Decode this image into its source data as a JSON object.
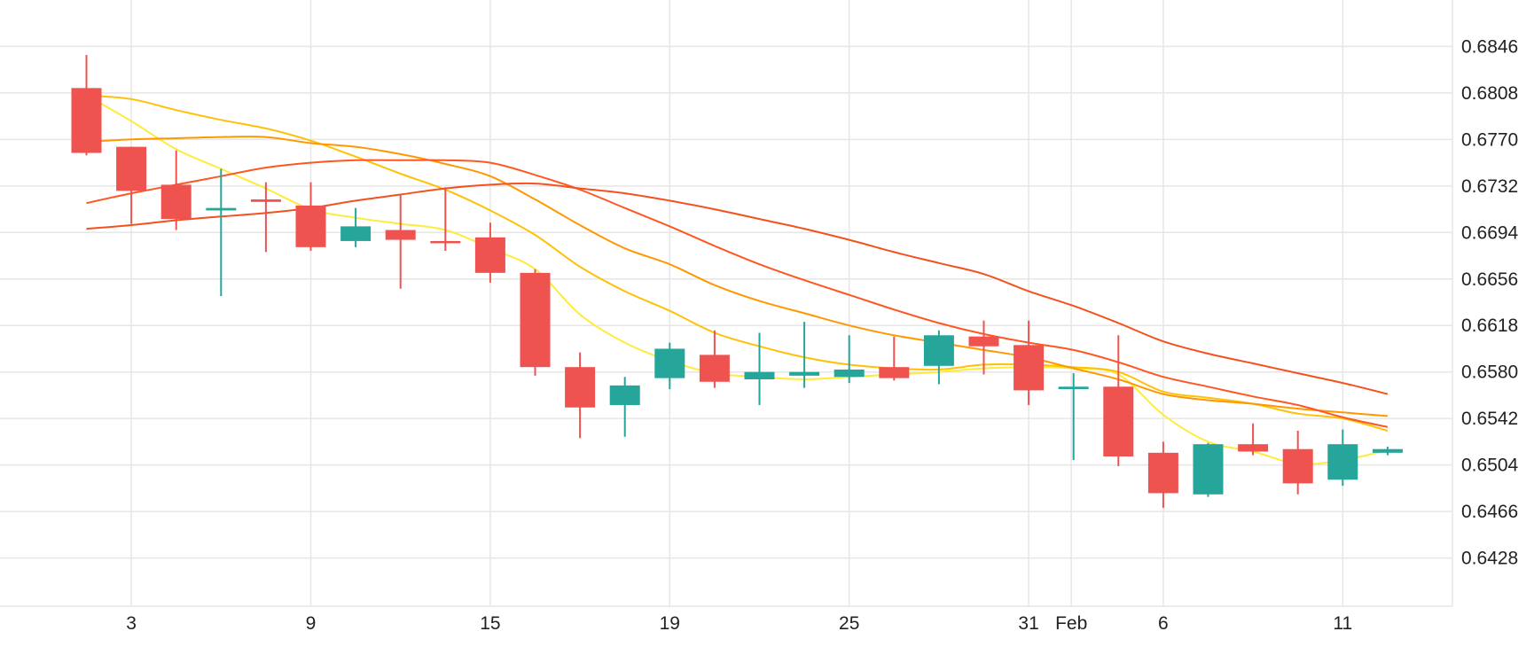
{
  "chart_data": {
    "type": "candlestick",
    "title": "",
    "xlabel": "",
    "ylabel": "",
    "ylim": [
      0.639,
      0.688
    ],
    "grid": true,
    "y_ticks": [
      0.6846,
      0.6808,
      0.677,
      0.6732,
      0.6694,
      0.6656,
      0.6618,
      0.658,
      0.6542,
      0.6504,
      0.6466,
      0.6428
    ],
    "y_tick_labels": [
      "0.6846",
      "0.6808",
      "0.6770",
      "0.6732",
      "0.6694",
      "0.6656",
      "0.6618",
      "0.6580",
      "0.6542",
      "0.6504",
      "0.6466",
      "0.6428"
    ],
    "x_ticks": [
      {
        "index": 1,
        "label": "3"
      },
      {
        "index": 5,
        "label": "9"
      },
      {
        "index": 9,
        "label": "15"
      },
      {
        "index": 13,
        "label": "19"
      },
      {
        "index": 17,
        "label": "25"
      },
      {
        "index": 21,
        "label": "31"
      },
      {
        "index": 21.95,
        "label": "Feb"
      },
      {
        "index": 24,
        "label": "6"
      },
      {
        "index": 28,
        "label": "11"
      }
    ],
    "colors": {
      "up": "#26a69a",
      "down": "#ef5350",
      "ma_lines": [
        "#ffeb3b",
        "#ffc107",
        "#ff9800",
        "#ff5722",
        "#f4511e"
      ],
      "grid": "#e6e6e6"
    },
    "candles": [
      {
        "open": 0.6812,
        "high": 0.6839,
        "low": 0.6757,
        "close": 0.6759
      },
      {
        "open": 0.6764,
        "high": 0.6764,
        "low": 0.6701,
        "close": 0.6728
      },
      {
        "open": 0.6733,
        "high": 0.6761,
        "low": 0.6696,
        "close": 0.6705
      },
      {
        "open": 0.6712,
        "high": 0.6746,
        "low": 0.6642,
        "close": 0.6714
      },
      {
        "open": 0.6721,
        "high": 0.6735,
        "low": 0.6678,
        "close": 0.6719
      },
      {
        "open": 0.6716,
        "high": 0.6735,
        "low": 0.6679,
        "close": 0.6682
      },
      {
        "open": 0.6687,
        "high": 0.6714,
        "low": 0.6682,
        "close": 0.6699
      },
      {
        "open": 0.6696,
        "high": 0.6725,
        "low": 0.6648,
        "close": 0.6688
      },
      {
        "open": 0.6687,
        "high": 0.6731,
        "low": 0.6679,
        "close": 0.6686
      },
      {
        "open": 0.669,
        "high": 0.6702,
        "low": 0.6653,
        "close": 0.6661
      },
      {
        "open": 0.6661,
        "high": 0.6664,
        "low": 0.6577,
        "close": 0.6584
      },
      {
        "open": 0.6584,
        "high": 0.6596,
        "low": 0.6526,
        "close": 0.6551
      },
      {
        "open": 0.6553,
        "high": 0.6576,
        "low": 0.6527,
        "close": 0.6569
      },
      {
        "open": 0.6575,
        "high": 0.6604,
        "low": 0.6566,
        "close": 0.6599
      },
      {
        "open": 0.6594,
        "high": 0.6614,
        "low": 0.6567,
        "close": 0.6572
      },
      {
        "open": 0.6574,
        "high": 0.6612,
        "low": 0.6553,
        "close": 0.658
      },
      {
        "open": 0.6577,
        "high": 0.6621,
        "low": 0.6567,
        "close": 0.658
      },
      {
        "open": 0.6576,
        "high": 0.661,
        "low": 0.6571,
        "close": 0.6582
      },
      {
        "open": 0.6584,
        "high": 0.6609,
        "low": 0.6573,
        "close": 0.6575
      },
      {
        "open": 0.6585,
        "high": 0.6614,
        "low": 0.657,
        "close": 0.661
      },
      {
        "open": 0.6609,
        "high": 0.6622,
        "low": 0.6578,
        "close": 0.6601
      },
      {
        "open": 0.6602,
        "high": 0.6622,
        "low": 0.6553,
        "close": 0.6565
      },
      {
        "open": 0.6566,
        "high": 0.6579,
        "low": 0.6508,
        "close": 0.6568
      },
      {
        "open": 0.6568,
        "high": 0.661,
        "low": 0.6503,
        "close": 0.6511
      },
      {
        "open": 0.6514,
        "high": 0.6523,
        "low": 0.6469,
        "close": 0.6481
      },
      {
        "open": 0.648,
        "high": 0.6522,
        "low": 0.6478,
        "close": 0.6521
      },
      {
        "open": 0.6521,
        "high": 0.6538,
        "low": 0.6512,
        "close": 0.6515
      },
      {
        "open": 0.6517,
        "high": 0.6532,
        "low": 0.648,
        "close": 0.6489
      },
      {
        "open": 0.6492,
        "high": 0.6533,
        "low": 0.6487,
        "close": 0.6521
      },
      {
        "open": 0.6514,
        "high": 0.6519,
        "low": 0.6512,
        "close": 0.6517
      }
    ],
    "moving_averages": [
      {
        "color": "#ffeb3b",
        "values": [
          0.6806,
          0.6785,
          0.6762,
          0.6746,
          0.673,
          0.6713,
          0.6706,
          0.6701,
          0.6696,
          0.6681,
          0.6664,
          0.6627,
          0.6604,
          0.6589,
          0.6579,
          0.6576,
          0.6574,
          0.6576,
          0.6578,
          0.658,
          0.6583,
          0.6584,
          0.6583,
          0.6578,
          0.6545,
          0.6523,
          0.6515,
          0.6505,
          0.6508,
          0.6516
        ]
      },
      {
        "color": "#ffc107",
        "values": [
          0.6806,
          0.6803,
          0.6794,
          0.6786,
          0.6779,
          0.6769,
          0.6756,
          0.6742,
          0.6729,
          0.6712,
          0.6692,
          0.6666,
          0.6646,
          0.663,
          0.6612,
          0.6601,
          0.6592,
          0.6586,
          0.6583,
          0.6582,
          0.6586,
          0.6586,
          0.6584,
          0.658,
          0.6564,
          0.6559,
          0.6554,
          0.6546,
          0.6542,
          0.6532
        ]
      },
      {
        "color": "#ff9800",
        "values": [
          0.6768,
          0.677,
          0.6771,
          0.6772,
          0.6772,
          0.6767,
          0.6764,
          0.6758,
          0.675,
          0.674,
          0.6721,
          0.67,
          0.6681,
          0.6668,
          0.6651,
          0.6638,
          0.6628,
          0.6618,
          0.661,
          0.6604,
          0.6598,
          0.6592,
          0.6583,
          0.6574,
          0.6562,
          0.6557,
          0.6554,
          0.655,
          0.6547,
          0.6544
        ]
      },
      {
        "color": "#ff5722",
        "values": [
          0.6718,
          0.6726,
          0.6733,
          0.674,
          0.6747,
          0.6751,
          0.6753,
          0.6753,
          0.6753,
          0.6751,
          0.6741,
          0.6729,
          0.6714,
          0.6699,
          0.6683,
          0.6668,
          0.6655,
          0.6643,
          0.6631,
          0.662,
          0.6611,
          0.6604,
          0.6598,
          0.6588,
          0.6576,
          0.6568,
          0.656,
          0.6553,
          0.6543,
          0.6535
        ]
      },
      {
        "color": "#f4511e",
        "values": [
          0.6697,
          0.67,
          0.6704,
          0.6707,
          0.671,
          0.6714,
          0.672,
          0.6725,
          0.673,
          0.6733,
          0.6734,
          0.673,
          0.6726,
          0.672,
          0.6713,
          0.6705,
          0.6697,
          0.6688,
          0.6678,
          0.6669,
          0.666,
          0.6646,
          0.6634,
          0.662,
          0.6605,
          0.6595,
          0.6587,
          0.6579,
          0.6571,
          0.6562
        ]
      }
    ]
  }
}
